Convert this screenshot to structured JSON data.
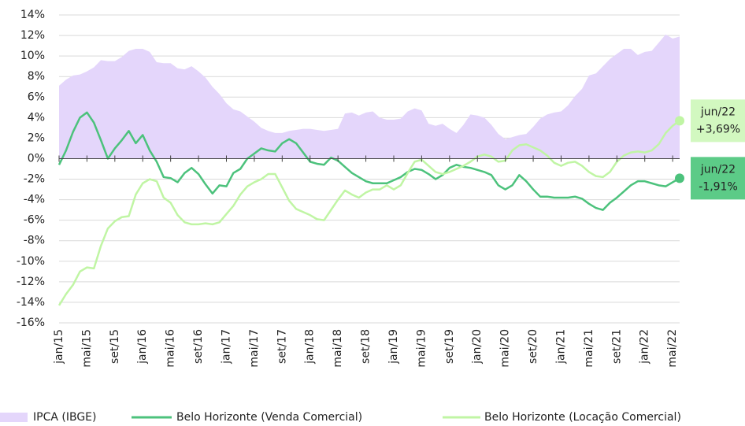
{
  "chart_data": {
    "type": "line",
    "categories": [
      "jan/15",
      null,
      null,
      null,
      "mai/15",
      null,
      null,
      null,
      "set/15",
      null,
      null,
      null,
      "jan/16",
      null,
      null,
      null,
      "mai/16",
      null,
      null,
      null,
      "set/16",
      null,
      null,
      null,
      "jan/17",
      null,
      null,
      null,
      "mai/17",
      null,
      null,
      null,
      "set/17",
      null,
      null,
      null,
      "jan/18",
      null,
      null,
      null,
      "mai/18",
      null,
      null,
      null,
      "set/18",
      null,
      null,
      null,
      "jan/19",
      null,
      null,
      null,
      "mai/19",
      null,
      null,
      null,
      "set/19",
      null,
      null,
      null,
      "jan/20",
      null,
      null,
      null,
      "mai/20",
      null,
      null,
      null,
      "set/20",
      null,
      null,
      null,
      "jan/21",
      null,
      null,
      null,
      "mai/21",
      null,
      null,
      null,
      "set/21",
      null,
      null,
      null,
      "jan/22",
      null,
      null,
      null,
      "mai/22",
      null
    ],
    "series": [
      {
        "name": "IPCA (IBGE)",
        "color": "#e4d6fb",
        "style": "area",
        "values": [
          7.1,
          7.7,
          8.1,
          8.2,
          8.5,
          8.9,
          9.6,
          9.5,
          9.5,
          9.9,
          10.5,
          10.7,
          10.7,
          10.4,
          9.4,
          9.3,
          9.3,
          8.8,
          8.7,
          9.0,
          8.5,
          7.9,
          7.0,
          6.3,
          5.4,
          4.8,
          4.6,
          4.1,
          3.6,
          3.0,
          2.7,
          2.5,
          2.5,
          2.7,
          2.8,
          2.9,
          2.9,
          2.8,
          2.7,
          2.8,
          2.9,
          4.4,
          4.5,
          4.2,
          4.5,
          4.6,
          4.0,
          3.8,
          3.8,
          3.9,
          4.6,
          4.9,
          4.7,
          3.4,
          3.2,
          3.4,
          2.9,
          2.5,
          3.3,
          4.3,
          4.2,
          4.0,
          3.3,
          2.4,
          1.9,
          2.1,
          2.3,
          2.4,
          3.1,
          3.9,
          4.3,
          4.5,
          4.6,
          5.2,
          6.1,
          6.8,
          8.1,
          8.3,
          9.0,
          9.7,
          10.2,
          10.7,
          10.7,
          10.1,
          10.4,
          10.5,
          11.3,
          12.1,
          11.7,
          11.9
        ]
      },
      {
        "name": "Belo Horizonte (Venda Comercial)",
        "color": "#4cc27c",
        "style": "line",
        "values": [
          -0.6,
          0.8,
          2.6,
          4.0,
          4.5,
          3.5,
          1.8,
          0.0,
          1.0,
          1.8,
          2.7,
          1.5,
          2.3,
          0.8,
          -0.3,
          -1.8,
          -1.9,
          -2.3,
          -1.4,
          -0.9,
          -1.5,
          -2.5,
          -3.4,
          -2.6,
          -2.7,
          -1.4,
          -1.0,
          0.0,
          0.5,
          1.0,
          0.8,
          0.7,
          1.5,
          1.9,
          1.5,
          0.6,
          -0.3,
          -0.5,
          -0.6,
          0.1,
          -0.2,
          -0.8,
          -1.4,
          -1.8,
          -2.2,
          -2.4,
          -2.4,
          -2.4,
          -2.1,
          -1.8,
          -1.3,
          -1.0,
          -1.1,
          -1.5,
          -2.0,
          -1.6,
          -0.9,
          -0.6,
          -0.8,
          -0.9,
          -1.1,
          -1.3,
          -1.6,
          -2.6,
          -3.0,
          -2.6,
          -1.6,
          -2.2,
          -3.0,
          -3.7,
          -3.7,
          -3.8,
          -3.8,
          -3.8,
          -3.7,
          -3.9,
          -4.4,
          -4.8,
          -5.0,
          -4.3,
          -3.8,
          -3.2,
          -2.6,
          -2.2,
          -2.2,
          -2.4,
          -2.6,
          -2.7,
          -2.3,
          -1.91
        ],
        "end_label": {
          "category": "jun/22",
          "label": "-1,91%"
        },
        "label_color": "#5ccb87"
      },
      {
        "name": "Belo Horizonte (Locação Comercial)",
        "color": "#c0f5a4",
        "style": "line",
        "values": [
          -14.3,
          -13.2,
          -12.3,
          -11.0,
          -10.6,
          -10.7,
          -8.5,
          -6.8,
          -6.1,
          -5.7,
          -5.6,
          -3.5,
          -2.4,
          -2.0,
          -2.2,
          -3.8,
          -4.3,
          -5.5,
          -6.2,
          -6.4,
          -6.4,
          -6.3,
          -6.4,
          -6.2,
          -5.4,
          -4.6,
          -3.5,
          -2.7,
          -2.3,
          -2.0,
          -1.5,
          -1.5,
          -2.8,
          -4.1,
          -4.9,
          -5.2,
          -5.5,
          -5.9,
          -6.0,
          -5.0,
          -4.0,
          -3.1,
          -3.5,
          -3.8,
          -3.3,
          -3.0,
          -3.0,
          -2.6,
          -3.0,
          -2.6,
          -1.4,
          -0.3,
          -0.1,
          -0.7,
          -1.3,
          -1.5,
          -1.3,
          -1.0,
          -0.7,
          -0.3,
          0.2,
          0.4,
          0.2,
          -0.3,
          -0.2,
          0.8,
          1.3,
          1.4,
          1.1,
          0.8,
          0.3,
          -0.4,
          -0.7,
          -0.4,
          -0.3,
          -0.7,
          -1.3,
          -1.7,
          -1.8,
          -1.3,
          -0.3,
          0.3,
          0.6,
          0.7,
          0.6,
          0.8,
          1.4,
          2.5,
          3.2,
          3.69
        ],
        "end_label": {
          "category": "jun/22",
          "label": "+3,69%"
        },
        "label_color": "#d2f8c0"
      }
    ],
    "ylim": [
      -16,
      14
    ],
    "yticks": [
      {
        "value": -16,
        "label": "-16%"
      },
      {
        "value": -14,
        "label": "-14%"
      },
      {
        "value": -12,
        "label": "-12%"
      },
      {
        "value": -10,
        "label": "-10%"
      },
      {
        "value": -8,
        "label": "-8%"
      },
      {
        "value": -6,
        "label": "-6%"
      },
      {
        "value": -4,
        "label": "-4%"
      },
      {
        "value": -2,
        "label": "-2%"
      },
      {
        "value": 0,
        "label": "0%"
      },
      {
        "value": 2,
        "label": "2%"
      },
      {
        "value": 4,
        "label": "4%"
      },
      {
        "value": 6,
        "label": "6%"
      },
      {
        "value": 8,
        "label": "8%"
      },
      {
        "value": 10,
        "label": "10%"
      },
      {
        "value": 12,
        "label": "12%"
      },
      {
        "value": 14,
        "label": "14%"
      }
    ],
    "grid": true,
    "legend": "bottom"
  }
}
